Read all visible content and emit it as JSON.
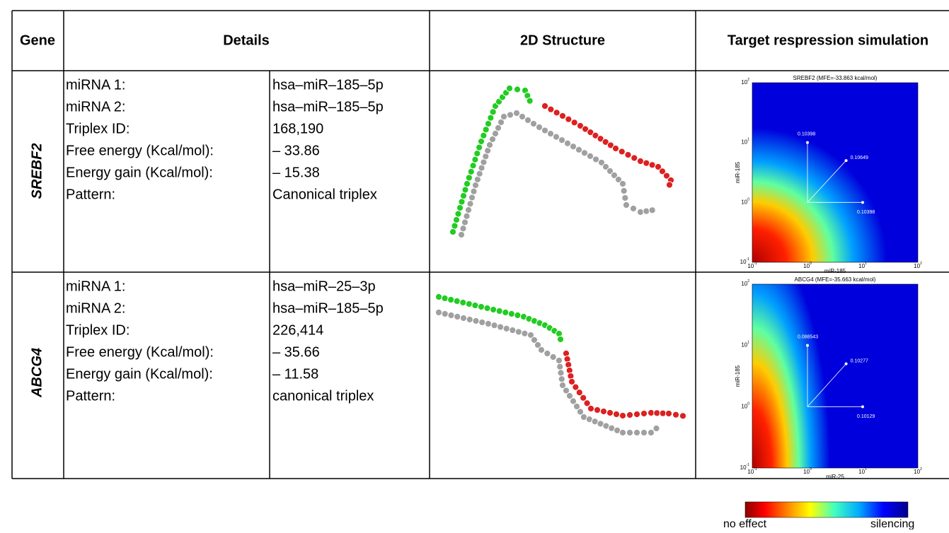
{
  "table": {
    "header": [
      "Gene",
      "Details",
      "2D Structure",
      "Target respression simulation"
    ],
    "rows": [
      {
        "gene": "SREBF2",
        "details": [
          [
            "miRNA 1:",
            "hsa–miR–185–5p"
          ],
          [
            "miRNA 2:",
            "hsa–miR–185–5p"
          ],
          [
            "Triplex ID:",
            "168,190"
          ],
          [
            "Free energy (Kcal/mol):",
            "– 33.86"
          ],
          [
            "Energy gain (Kcal/mol):",
            "– 15.38"
          ],
          [
            "Pattern:",
            "Canonical triplex"
          ]
        ],
        "plot": {
          "title": "SREBF2 (MFE=-33.863 kcal/mol)",
          "xlabel": "miR-185",
          "ylabel": "miR-185",
          "ticks": [
            {
              "base": "10",
              "exp": "-1"
            },
            {
              "base": "10",
              "exp": "0"
            },
            {
              "base": "10",
              "exp": "1"
            },
            {
              "base": "10",
              "exp": "2"
            }
          ],
          "points": [
            "0.10398",
            "0.10649",
            "0.10398"
          ]
        }
      },
      {
        "gene": "ABCG4",
        "details": [
          [
            "miRNA 1:",
            "hsa–miR–25–3p"
          ],
          [
            "miRNA 2:",
            "hsa–miR–185–5p"
          ],
          [
            "Triplex ID:",
            "226,414"
          ],
          [
            "Free energy (Kcal/mol):",
            "– 35.66"
          ],
          [
            "Energy gain (Kcal/mol):",
            "– 11.58"
          ],
          [
            "Pattern:",
            "canonical triplex"
          ]
        ],
        "plot": {
          "title": "ABCG4 (MFE=-35.663 kcal/mol)",
          "xlabel": "miR-25",
          "ylabel": "miR-185",
          "ticks": [
            {
              "base": "10",
              "exp": "-1"
            },
            {
              "base": "10",
              "exp": "0"
            },
            {
              "base": "10",
              "exp": "1"
            },
            {
              "base": "10",
              "exp": "2"
            }
          ],
          "points": [
            "0.088543",
            "0.10277",
            "0.10129"
          ]
        }
      }
    ]
  },
  "colorbar": {
    "min_label": "no effect",
    "max_label": "silencing"
  }
}
